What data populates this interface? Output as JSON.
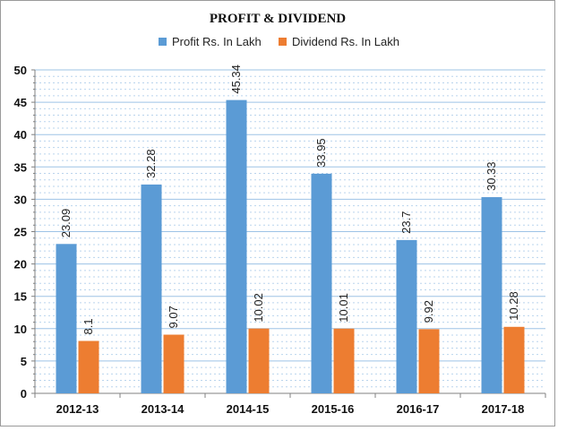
{
  "chart_data": {
    "type": "bar",
    "title": "PROFIT & DIVIDEND",
    "categories": [
      "2012-13",
      "2013-14",
      "2014-15",
      "2015-16",
      "2016-17",
      "2017-18"
    ],
    "series": [
      {
        "name": "Profit Rs. In Lakh",
        "values": [
          23.09,
          32.28,
          45.34,
          33.95,
          23.7,
          30.33
        ],
        "labels": [
          "23.09",
          "32.28",
          "45.34",
          "33.95",
          "23.7",
          "30.33"
        ],
        "color": "#5b9bd5"
      },
      {
        "name": "Dividend Rs. In Lakh",
        "values": [
          8.1,
          9.07,
          10.02,
          10.01,
          9.92,
          10.28
        ],
        "labels": [
          "8.1",
          "9.07",
          "10.02",
          "10.01",
          "9.92",
          "10.28"
        ],
        "color": "#ed7d31"
      }
    ],
    "ylim": [
      0,
      50
    ],
    "yticks": [
      0,
      5,
      10,
      15,
      20,
      25,
      30,
      35,
      40,
      45,
      50
    ],
    "xlabel": "",
    "ylabel": "",
    "grid": true,
    "legend": "top-center",
    "colors": {
      "title": "#111111",
      "grid": "#9dc3e6",
      "axis": "#808080"
    }
  }
}
